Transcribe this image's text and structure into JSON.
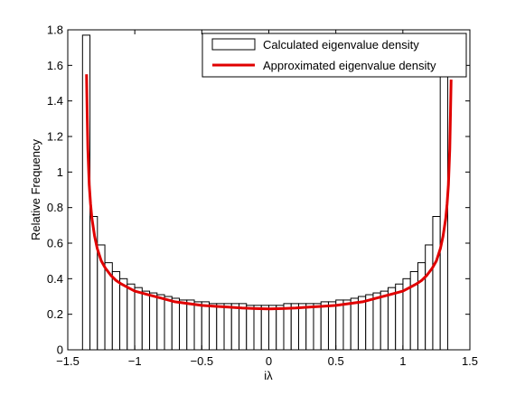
{
  "chart_data": {
    "type": "bar",
    "xlabel": "iλ",
    "ylabel": "Relative Frequency",
    "xlim": [
      -1.5,
      1.5
    ],
    "ylim": [
      0,
      1.8
    ],
    "xticks": [
      -1.5,
      -1,
      -0.5,
      0,
      0.5,
      1,
      1.5
    ],
    "xtick_labels": [
      "−1.5",
      "−1",
      "−0.5",
      "0",
      "0.5",
      "1",
      "1.5"
    ],
    "yticks": [
      0,
      0.2,
      0.4,
      0.6,
      0.8,
      1,
      1.2,
      1.4,
      1.6,
      1.8
    ],
    "ytick_labels": [
      "0",
      "0.2",
      "0.4",
      "0.6",
      "0.8",
      "1",
      "1.2",
      "1.4",
      "1.6",
      "1.8"
    ],
    "grid": false,
    "legend_position": "top-right",
    "series": [
      {
        "name": "Calculated eigenvalue density",
        "kind": "histogram",
        "color": "#000000",
        "bin_start": -1.39,
        "bin_width": 0.0556,
        "values": [
          1.77,
          0.75,
          0.59,
          0.49,
          0.44,
          0.4,
          0.37,
          0.35,
          0.33,
          0.32,
          0.31,
          0.3,
          0.29,
          0.28,
          0.28,
          0.27,
          0.27,
          0.26,
          0.26,
          0.26,
          0.26,
          0.26,
          0.25,
          0.25,
          0.25,
          0.25,
          0.25,
          0.26,
          0.26,
          0.26,
          0.26,
          0.26,
          0.27,
          0.27,
          0.28,
          0.28,
          0.29,
          0.3,
          0.31,
          0.32,
          0.33,
          0.35,
          0.37,
          0.4,
          0.44,
          0.49,
          0.59,
          0.75,
          1.77
        ]
      },
      {
        "name": "Approximated eigenvalue density",
        "kind": "line",
        "color": "#e00000",
        "x": [
          -1.36,
          -1.355,
          -1.35,
          -1.34,
          -1.33,
          -1.32,
          -1.3,
          -1.28,
          -1.25,
          -1.22,
          -1.18,
          -1.14,
          -1.1,
          -1.05,
          -1.0,
          -0.9,
          -0.8,
          -0.7,
          -0.6,
          -0.5,
          -0.4,
          -0.3,
          -0.2,
          -0.1,
          0,
          0.1,
          0.2,
          0.3,
          0.4,
          0.5,
          0.6,
          0.7,
          0.8,
          0.9,
          1.0,
          1.05,
          1.1,
          1.14,
          1.18,
          1.22,
          1.25,
          1.28,
          1.3,
          1.32,
          1.33,
          1.34,
          1.35,
          1.355,
          1.36
        ],
        "y": [
          1.55,
          1.32,
          1.13,
          0.93,
          0.82,
          0.74,
          0.64,
          0.57,
          0.5,
          0.46,
          0.42,
          0.39,
          0.37,
          0.35,
          0.33,
          0.31,
          0.29,
          0.27,
          0.26,
          0.25,
          0.245,
          0.24,
          0.235,
          0.232,
          0.23,
          0.232,
          0.235,
          0.24,
          0.245,
          0.25,
          0.26,
          0.27,
          0.29,
          0.31,
          0.33,
          0.35,
          0.37,
          0.39,
          0.42,
          0.46,
          0.5,
          0.57,
          0.64,
          0.74,
          0.82,
          0.93,
          1.13,
          1.32,
          1.52
        ]
      }
    ]
  }
}
